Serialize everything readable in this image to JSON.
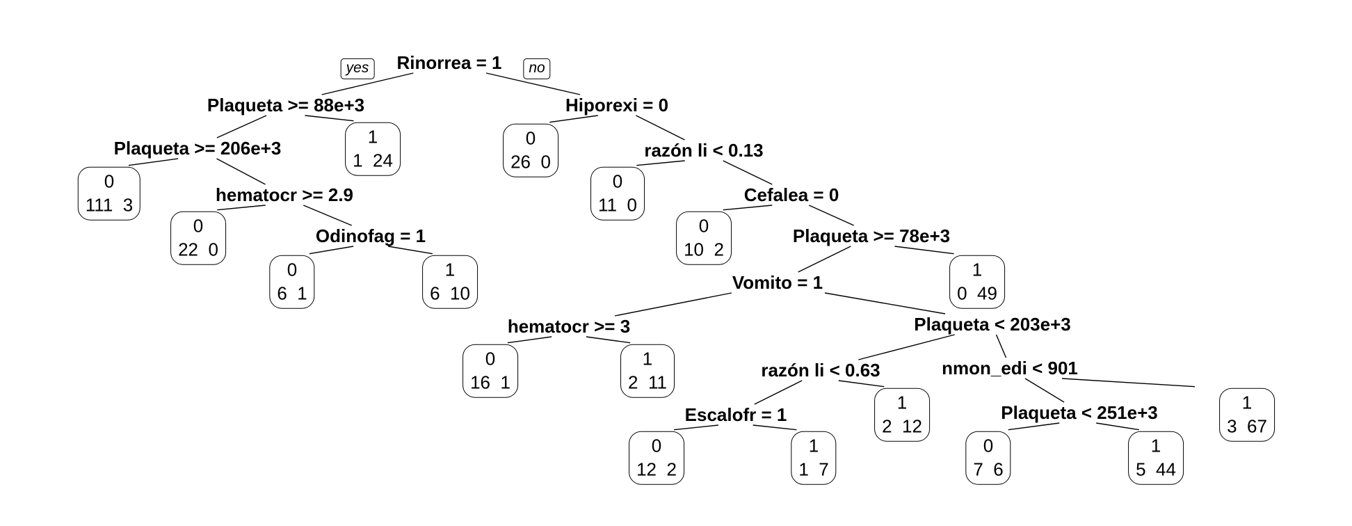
{
  "tree": {
    "root_yes_label": "yes",
    "root_no_label": "no",
    "splits": [
      {
        "id": "n1",
        "label": "Rinorrea = 1"
      },
      {
        "id": "n2",
        "label": "Plaqueta >= 88e+3"
      },
      {
        "id": "n3",
        "label": "Hiporexi = 0"
      },
      {
        "id": "n4",
        "label": "Plaqueta >= 206e+3"
      },
      {
        "id": "n5",
        "label": "hematocr >= 2.9"
      },
      {
        "id": "n6",
        "label": "Odinofag = 1"
      },
      {
        "id": "n7",
        "label": "razón li < 0.13"
      },
      {
        "id": "n8",
        "label": "Cefalea = 0"
      },
      {
        "id": "n9",
        "label": "Plaqueta >= 78e+3"
      },
      {
        "id": "n10",
        "label": "Vomito = 1"
      },
      {
        "id": "n11",
        "label": "hematocr >= 3"
      },
      {
        "id": "n12",
        "label": "Plaqueta < 203e+3"
      },
      {
        "id": "n13",
        "label": "razón li < 0.63"
      },
      {
        "id": "n14",
        "label": "nmon_edi < 901"
      },
      {
        "id": "n15",
        "label": "Escalofr = 1"
      },
      {
        "id": "n16",
        "label": "Plaqueta < 251e+3"
      }
    ],
    "leaves": [
      {
        "id": "L1",
        "cls": "0",
        "counts": "111  3"
      },
      {
        "id": "L2",
        "cls": "0",
        "counts": "22  0"
      },
      {
        "id": "L3",
        "cls": "0",
        "counts": "6  1"
      },
      {
        "id": "L4",
        "cls": "1",
        "counts": "6  10"
      },
      {
        "id": "L5",
        "cls": "1",
        "counts": "1  24"
      },
      {
        "id": "L6",
        "cls": "0",
        "counts": "26  0"
      },
      {
        "id": "L7",
        "cls": "0",
        "counts": "11  0"
      },
      {
        "id": "L8",
        "cls": "0",
        "counts": "10  2"
      },
      {
        "id": "L9",
        "cls": "0",
        "counts": "16  1"
      },
      {
        "id": "L10",
        "cls": "1",
        "counts": "2  11"
      },
      {
        "id": "L11",
        "cls": "0",
        "counts": "12  2"
      },
      {
        "id": "L12",
        "cls": "1",
        "counts": "1  7"
      },
      {
        "id": "L13",
        "cls": "1",
        "counts": "2  12"
      },
      {
        "id": "L14",
        "cls": "0",
        "counts": "7  6"
      },
      {
        "id": "L15",
        "cls": "1",
        "counts": "5  44"
      },
      {
        "id": "L16",
        "cls": "1",
        "counts": "3  67"
      },
      {
        "id": "L17",
        "cls": "1",
        "counts": "0  49"
      }
    ],
    "edges": [
      [
        "n1",
        "n2"
      ],
      [
        "n1",
        "n3"
      ],
      [
        "n2",
        "n4"
      ],
      [
        "n2",
        "L5"
      ],
      [
        "n4",
        "L1"
      ],
      [
        "n4",
        "n5"
      ],
      [
        "n5",
        "L2"
      ],
      [
        "n5",
        "n6"
      ],
      [
        "n6",
        "L3"
      ],
      [
        "n6",
        "L4"
      ],
      [
        "n3",
        "L6"
      ],
      [
        "n3",
        "n7"
      ],
      [
        "n7",
        "L7"
      ],
      [
        "n7",
        "n8"
      ],
      [
        "n8",
        "L8"
      ],
      [
        "n8",
        "n9"
      ],
      [
        "n9",
        "n10"
      ],
      [
        "n9",
        "L17"
      ],
      [
        "n10",
        "n11"
      ],
      [
        "n10",
        "n12"
      ],
      [
        "n11",
        "L9"
      ],
      [
        "n11",
        "L10"
      ],
      [
        "n12",
        "n13"
      ],
      [
        "n12",
        "n14"
      ],
      [
        "n13",
        "n15"
      ],
      [
        "n13",
        "L13"
      ],
      [
        "n15",
        "L11"
      ],
      [
        "n15",
        "L12"
      ],
      [
        "n14",
        "n16"
      ],
      [
        "n14",
        "L16"
      ],
      [
        "n16",
        "L14"
      ],
      [
        "n16",
        "L15"
      ]
    ]
  }
}
